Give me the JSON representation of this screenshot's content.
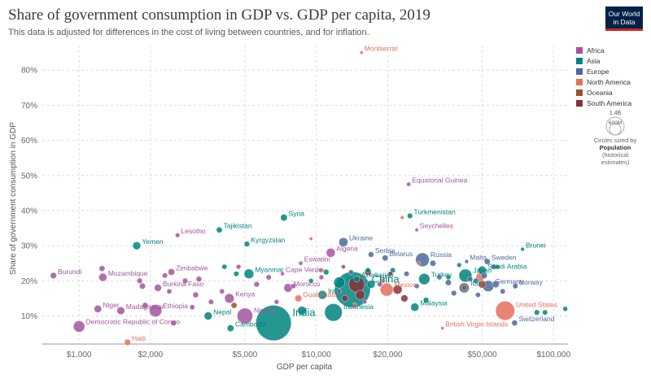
{
  "header": {
    "title": "Share of government consumption in GDP vs. GDP per capita, 2019",
    "subtitle": "This data is adjusted for differences in the cost of living between countries, and for inflation.",
    "logo_line1": "Our World",
    "logo_line2": "in Data"
  },
  "colors": {
    "Africa": "#a2559c",
    "Asia": "#00847e",
    "Europe": "#4c6a9c",
    "North America": "#e56e5a",
    "Oceania": "#9a5129",
    "South America": "#883039"
  },
  "legend": {
    "items": [
      "Africa",
      "Asia",
      "Europe",
      "North America",
      "Oceania",
      "South America"
    ]
  },
  "size_key": {
    "big": "1.4B",
    "small": "600M",
    "line1": "Circles sized by",
    "line2": "Population",
    "line3": "(historical",
    "line4": "estimates)"
  },
  "chart_data": {
    "type": "scatter",
    "title": "Share of government consumption in GDP vs. GDP per capita, 2019",
    "xlabel": "GDP per capita",
    "ylabel": "Share of government consumption in GDP",
    "x_scale": "log",
    "xlim": [
      700,
      115000
    ],
    "ylim": [
      2,
      87
    ],
    "x_ticks": [
      1000,
      2000,
      5000,
      10000,
      20000,
      50000,
      100000
    ],
    "x_tick_labels": [
      "$1,000",
      "$2,000",
      "$5,000",
      "$10,000",
      "$20,000",
      "$50,000",
      "$100,000"
    ],
    "y_ticks": [
      10,
      20,
      30,
      40,
      50,
      60,
      70,
      80
    ],
    "y_tick_labels": [
      "10%",
      "20%",
      "30%",
      "40%",
      "50%",
      "60%",
      "70%",
      "80%"
    ],
    "grid": true,
    "legend_position": "top-right",
    "labeled_points": [
      {
        "name": "Montserrat",
        "x": 15500,
        "y": 85,
        "region": "North America",
        "pop": 0.005
      },
      {
        "name": "Equatorial Guinea",
        "x": 24500,
        "y": 47.5,
        "region": "Africa",
        "pop": 1.3
      },
      {
        "name": "Turkmenistan",
        "x": 24800,
        "y": 38.5,
        "region": "Asia",
        "pop": 6
      },
      {
        "name": "Syria",
        "x": 7300,
        "y": 38,
        "region": "Asia",
        "pop": 17
      },
      {
        "name": "Seychelles",
        "x": 26500,
        "y": 34.5,
        "region": "Africa",
        "pop": 0.1
      },
      {
        "name": "Tajikistan",
        "x": 3900,
        "y": 34.5,
        "region": "Asia",
        "pop": 9
      },
      {
        "name": "Lesotho",
        "x": 2600,
        "y": 33,
        "region": "Africa",
        "pop": 2
      },
      {
        "name": "Kyrgyzstan",
        "x": 5100,
        "y": 30.5,
        "region": "Asia",
        "pop": 6.5
      },
      {
        "name": "Ukraine",
        "x": 13000,
        "y": 31,
        "region": "Europe",
        "pop": 44
      },
      {
        "name": "Yemen",
        "x": 1750,
        "y": 30,
        "region": "Asia",
        "pop": 29
      },
      {
        "name": "Brunei",
        "x": 74000,
        "y": 29,
        "region": "Asia",
        "pop": 0.4
      },
      {
        "name": "Serbia",
        "x": 17000,
        "y": 27.5,
        "region": "Europe",
        "pop": 7
      },
      {
        "name": "Belarus",
        "x": 19500,
        "y": 26.5,
        "region": "Europe",
        "pop": 9.5
      },
      {
        "name": "Eswatini",
        "x": 8600,
        "y": 25,
        "region": "Africa",
        "pop": 1.1
      },
      {
        "name": "Malta",
        "x": 43000,
        "y": 25.5,
        "region": "Europe",
        "pop": 0.5
      },
      {
        "name": "Sweden",
        "x": 52500,
        "y": 25.5,
        "region": "Europe",
        "pop": 10
      },
      {
        "name": "Russia",
        "x": 28000,
        "y": 26,
        "region": "Europe",
        "pop": 145
      },
      {
        "name": "Zimbabwe",
        "x": 2450,
        "y": 22.5,
        "region": "Africa",
        "pop": 15
      },
      {
        "name": "Myanmar",
        "x": 5200,
        "y": 22,
        "region": "Asia",
        "pop": 54
      },
      {
        "name": "Cape Verde",
        "x": 7200,
        "y": 22,
        "region": "Africa",
        "pop": 0.6
      },
      {
        "name": "Saudi Arabia",
        "x": 50000,
        "y": 23,
        "region": "Asia",
        "pop": 34
      },
      {
        "name": "Algeria",
        "x": 11500,
        "y": 28,
        "region": "Africa",
        "pop": 43
      },
      {
        "name": "Azerbaijan",
        "x": 14800,
        "y": 20.5,
        "region": "Asia",
        "pop": 10
      },
      {
        "name": "Japan",
        "x": 42500,
        "y": 21.5,
        "region": "Asia",
        "pop": 126
      },
      {
        "name": "Burundi",
        "x": 780,
        "y": 21.5,
        "region": "Africa",
        "pop": 12
      },
      {
        "name": "Mozambique",
        "x": 1260,
        "y": 21,
        "region": "Africa",
        "pop": 30
      },
      {
        "name": "Turkey",
        "x": 28500,
        "y": 20.5,
        "region": "Asia",
        "pop": 83
      },
      {
        "name": "Iran",
        "x": 12500,
        "y": 19.5,
        "region": "Asia",
        "pop": 83
      },
      {
        "name": "Morocco",
        "x": 7600,
        "y": 18,
        "region": "Africa",
        "pop": 36
      },
      {
        "name": "Norway",
        "x": 69000,
        "y": 18.5,
        "region": "Europe",
        "pop": 5.3
      },
      {
        "name": "Germany",
        "x": 53000,
        "y": 18.5,
        "region": "Europe",
        "pop": 83
      },
      {
        "name": "Burkina Faso",
        "x": 2150,
        "y": 18,
        "region": "Africa",
        "pop": 20
      },
      {
        "name": "Mexico",
        "x": 19800,
        "y": 17.5,
        "region": "North America",
        "pop": 127
      },
      {
        "name": "China",
        "x": 14200,
        "y": 17.5,
        "region": "Asia",
        "pop": 1400
      },
      {
        "name": "Iraq",
        "x": 10600,
        "y": 16,
        "region": "Asia",
        "pop": 39
      },
      {
        "name": "Italy",
        "x": 42000,
        "y": 18,
        "region": "Europe",
        "pop": 60
      },
      {
        "name": "Kenya",
        "x": 4300,
        "y": 15,
        "region": "Africa",
        "pop": 52
      },
      {
        "name": "Guatemala",
        "x": 8400,
        "y": 15,
        "region": "North America",
        "pop": 17
      },
      {
        "name": "United States",
        "x": 62500,
        "y": 11.5,
        "region": "North America",
        "pop": 329
      },
      {
        "name": "Niger",
        "x": 1200,
        "y": 12,
        "region": "Africa",
        "pop": 23
      },
      {
        "name": "Madagascar",
        "x": 1500,
        "y": 11.5,
        "region": "Africa",
        "pop": 27
      },
      {
        "name": "Ethiopia",
        "x": 2100,
        "y": 11.5,
        "region": "Africa",
        "pop": 112
      },
      {
        "name": "Malaysia",
        "x": 26000,
        "y": 12.5,
        "region": "Asia",
        "pop": 32
      },
      {
        "name": "Indonesia",
        "x": 11800,
        "y": 11,
        "region": "Asia",
        "pop": 270
      },
      {
        "name": "Nigeria",
        "x": 5000,
        "y": 10,
        "region": "Africa",
        "pop": 201
      },
      {
        "name": "Nepal",
        "x": 3500,
        "y": 10,
        "region": "Asia",
        "pop": 29
      },
      {
        "name": "India",
        "x": 6600,
        "y": 8,
        "region": "Asia",
        "pop": 1370
      },
      {
        "name": "Democratic Republic of Congo",
        "x": 1000,
        "y": 7,
        "region": "Africa",
        "pop": 87
      },
      {
        "name": "British Virgin Islands",
        "x": 34000,
        "y": 6.5,
        "region": "North America",
        "pop": 0.03
      },
      {
        "name": "Switzerland",
        "x": 68500,
        "y": 8,
        "region": "Europe",
        "pop": 8.6
      },
      {
        "name": "Cambodia",
        "x": 4350,
        "y": 6.5,
        "region": "Asia",
        "pop": 16
      },
      {
        "name": "Haiti",
        "x": 1600,
        "y": 2.5,
        "region": "North America",
        "pop": 11
      }
    ],
    "other_points": [
      {
        "x": 1250,
        "y": 23.5,
        "region": "Africa",
        "pop": 8
      },
      {
        "x": 1800,
        "y": 20,
        "region": "Africa",
        "pop": 6
      },
      {
        "x": 1850,
        "y": 18.5,
        "region": "Africa",
        "pop": 10
      },
      {
        "x": 2300,
        "y": 21.5,
        "region": "Africa",
        "pop": 5
      },
      {
        "x": 2400,
        "y": 17,
        "region": "Africa",
        "pop": 4
      },
      {
        "x": 2800,
        "y": 20,
        "region": "Africa",
        "pop": 6
      },
      {
        "x": 3100,
        "y": 16,
        "region": "Africa",
        "pop": 8
      },
      {
        "x": 3200,
        "y": 20.5,
        "region": "Africa",
        "pop": 7
      },
      {
        "x": 3600,
        "y": 14,
        "region": "Africa",
        "pop": 5
      },
      {
        "x": 4000,
        "y": 17,
        "region": "Africa",
        "pop": 4
      },
      {
        "x": 4700,
        "y": 24,
        "region": "Africa",
        "pop": 3
      },
      {
        "x": 5600,
        "y": 19,
        "region": "Africa",
        "pop": 6
      },
      {
        "x": 6300,
        "y": 21,
        "region": "Africa",
        "pop": 5
      },
      {
        "x": 6800,
        "y": 14,
        "region": "Africa",
        "pop": 3
      },
      {
        "x": 1900,
        "y": 13,
        "region": "Africa",
        "pop": 9
      },
      {
        "x": 2500,
        "y": 8,
        "region": "Africa",
        "pop": 6
      },
      {
        "x": 3000,
        "y": 12.5,
        "region": "Africa",
        "pop": 4
      },
      {
        "x": 8000,
        "y": 18.5,
        "region": "Africa",
        "pop": 4
      },
      {
        "x": 10500,
        "y": 21,
        "region": "Africa",
        "pop": 3
      },
      {
        "x": 12500,
        "y": 17,
        "region": "Africa",
        "pop": 2
      },
      {
        "x": 16000,
        "y": 14,
        "region": "Africa",
        "pop": 1
      },
      {
        "x": 4100,
        "y": 24,
        "region": "Asia",
        "pop": 4
      },
      {
        "x": 4600,
        "y": 22,
        "region": "Asia",
        "pop": 5
      },
      {
        "x": 8700,
        "y": 11.5,
        "region": "Asia",
        "pop": 40
      },
      {
        "x": 9500,
        "y": 20,
        "region": "Asia",
        "pop": 3
      },
      {
        "x": 11000,
        "y": 22.5,
        "region": "Asia",
        "pop": 7
      },
      {
        "x": 16500,
        "y": 23,
        "region": "Asia",
        "pop": 4
      },
      {
        "x": 17000,
        "y": 19,
        "region": "Asia",
        "pop": 30
      },
      {
        "x": 21000,
        "y": 23,
        "region": "Asia",
        "pop": 5
      },
      {
        "x": 29000,
        "y": 14.5,
        "region": "Asia",
        "pop": 7
      },
      {
        "x": 36000,
        "y": 21,
        "region": "Asia",
        "pop": 3
      },
      {
        "x": 40000,
        "y": 24.5,
        "region": "Asia",
        "pop": 2
      },
      {
        "x": 47000,
        "y": 20,
        "region": "Asia",
        "pop": 5
      },
      {
        "x": 58000,
        "y": 24,
        "region": "Asia",
        "pop": 3
      },
      {
        "x": 85000,
        "y": 11,
        "region": "Asia",
        "pop": 6
      },
      {
        "x": 92000,
        "y": 11,
        "region": "Asia",
        "pop": 5
      },
      {
        "x": 112000,
        "y": 12,
        "region": "Asia",
        "pop": 3
      },
      {
        "x": 14000,
        "y": 22.5,
        "region": "Europe",
        "pop": 3
      },
      {
        "x": 18500,
        "y": 19,
        "region": "Europe",
        "pop": 3
      },
      {
        "x": 24000,
        "y": 22,
        "region": "Europe",
        "pop": 5
      },
      {
        "x": 26500,
        "y": 18.5,
        "region": "Europe",
        "pop": 4
      },
      {
        "x": 31000,
        "y": 25,
        "region": "Europe",
        "pop": 10
      },
      {
        "x": 33000,
        "y": 21,
        "region": "Europe",
        "pop": 4
      },
      {
        "x": 36000,
        "y": 19.5,
        "region": "Europe",
        "pop": 10
      },
      {
        "x": 38000,
        "y": 16.5,
        "region": "Europe",
        "pop": 6
      },
      {
        "x": 44500,
        "y": 20.5,
        "region": "Europe",
        "pop": 5
      },
      {
        "x": 48000,
        "y": 16,
        "region": "Europe",
        "pop": 4
      },
      {
        "x": 51000,
        "y": 21.5,
        "region": "Europe",
        "pop": 11
      },
      {
        "x": 56000,
        "y": 24,
        "region": "Europe",
        "pop": 6
      },
      {
        "x": 57000,
        "y": 19,
        "region": "Europe",
        "pop": 17
      },
      {
        "x": 61000,
        "y": 17,
        "region": "Europe",
        "pop": 5
      },
      {
        "x": 13200,
        "y": 15,
        "region": "South America",
        "pop": 12
      },
      {
        "x": 14800,
        "y": 19,
        "region": "South America",
        "pop": 210
      },
      {
        "x": 15300,
        "y": 16,
        "region": "South America",
        "pop": 49
      },
      {
        "x": 16500,
        "y": 22.5,
        "region": "South America",
        "pop": 18
      },
      {
        "x": 20500,
        "y": 22,
        "region": "South America",
        "pop": 3
      },
      {
        "x": 22000,
        "y": 17.5,
        "region": "South America",
        "pop": 44
      },
      {
        "x": 23500,
        "y": 15,
        "region": "South America",
        "pop": 19
      },
      {
        "x": 10500,
        "y": 23,
        "region": "North America",
        "pop": 3
      },
      {
        "x": 14500,
        "y": 13,
        "region": "North America",
        "pop": 5
      },
      {
        "x": 19000,
        "y": 20,
        "region": "North America",
        "pop": 4
      },
      {
        "x": 23000,
        "y": 38,
        "region": "North America",
        "pop": 0.2
      },
      {
        "x": 27000,
        "y": 25,
        "region": "North America",
        "pop": 0.3
      },
      {
        "x": 49000,
        "y": 21,
        "region": "North America",
        "pop": 37
      },
      {
        "x": 9500,
        "y": 32,
        "region": "North America",
        "pop": 0.1
      },
      {
        "x": 4500,
        "y": 13,
        "region": "Oceania",
        "pop": 9
      },
      {
        "x": 13000,
        "y": 24,
        "region": "Oceania",
        "pop": 1
      },
      {
        "x": 42000,
        "y": 18,
        "region": "Oceania",
        "pop": 5
      },
      {
        "x": 50000,
        "y": 19,
        "region": "Oceania",
        "pop": 25
      }
    ]
  }
}
